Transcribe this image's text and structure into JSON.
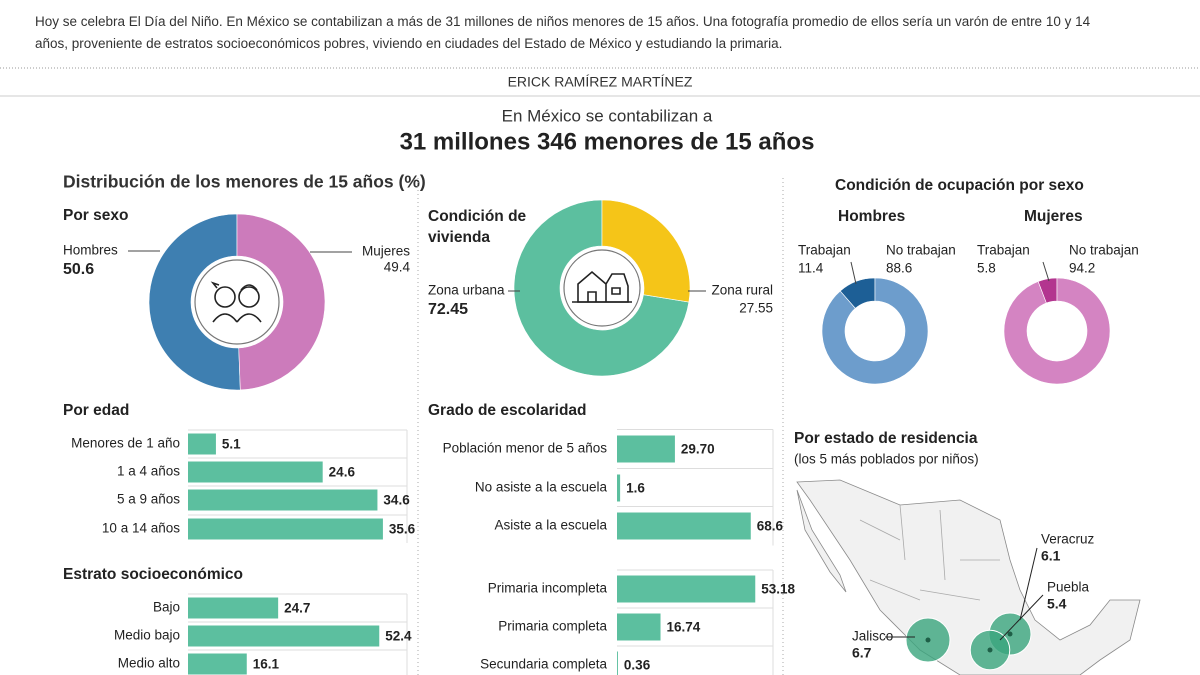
{
  "intro": "Hoy se celebra El Día del Niño. En México se contabilizan a más de 31 millones de niños menores de 15 años. Una fotografía promedio de ellos sería un varón de entre 10 y 14 años, proveniente de estratos socioeconómicos pobres, viviendo en ciudades del Estado de México y estudiando la primaria.",
  "author": "ERICK RAMÍREZ MARTÍNEZ",
  "headline_pre": "En México se contabilizan a",
  "headline": "31 millones 346 menores de 15 años",
  "section_title": "Distribución de los menores de 15 años (%)",
  "chart_data": [
    {
      "type": "pie",
      "title": "Por sexo",
      "categories": [
        "Hombres",
        "Mujeres"
      ],
      "values": [
        50.6,
        49.4
      ],
      "colors": [
        "#3e7fb1",
        "#cc7bbb"
      ]
    },
    {
      "type": "pie",
      "title": "Condición de vivienda",
      "categories": [
        "Zona urbana",
        "Zona rural"
      ],
      "values": [
        72.45,
        27.55
      ],
      "colors": [
        "#5cbf9f",
        "#f5c518"
      ]
    },
    {
      "type": "bar",
      "title": "Por edad",
      "categories": [
        "Menores de 1 año",
        "1 a 4 años",
        "5 a 9 años",
        "10 a 14 años"
      ],
      "values": [
        5.1,
        24.6,
        34.6,
        35.6
      ],
      "color": "#5cbf9f",
      "xlim": [
        0,
        40
      ]
    },
    {
      "type": "bar",
      "title": "Estrato socioeconómico",
      "categories": [
        "Bajo",
        "Medio bajo",
        "Medio alto"
      ],
      "values": [
        24.7,
        52.4,
        16.1
      ],
      "color": "#5cbf9f",
      "xlim": [
        0,
        60
      ]
    },
    {
      "type": "bar",
      "title": "Grado de escolaridad",
      "categories": [
        "Población menor de 5 años",
        "No asiste a la escuela",
        "Asiste a la escuela"
      ],
      "values": [
        29.7,
        1.6,
        68.6
      ],
      "value_labels": [
        "29.70",
        "1.6",
        "68.6"
      ],
      "color": "#5cbf9f",
      "xlim": [
        0,
        80
      ]
    },
    {
      "type": "bar",
      "categories": [
        "Primaria incompleta",
        "Primaria completa",
        "Secundaria completa"
      ],
      "values": [
        53.18,
        16.74,
        0.36
      ],
      "color": "#5cbf9f",
      "xlim": [
        0,
        60
      ]
    },
    {
      "type": "pie",
      "title": "Condición de ocupación por sexo",
      "panels": [
        {
          "name": "Hombres",
          "categories": [
            "Trabajan",
            "No trabajan"
          ],
          "values": [
            11.4,
            88.6
          ],
          "colors": [
            "#1d5f96",
            "#6d9dcc"
          ]
        },
        {
          "name": "Mujeres",
          "categories": [
            "Trabajan",
            "No trabajan"
          ],
          "values": [
            5.8,
            94.2
          ],
          "colors": [
            "#b3358f",
            "#d484c2"
          ]
        }
      ]
    },
    {
      "type": "map",
      "title": "Por estado de residencia",
      "subtitle": "(los 5 más poblados por niños)",
      "categories": [
        "Jalisco",
        "Veracruz",
        "Puebla"
      ],
      "values": [
        6.7,
        6.1,
        5.4
      ],
      "color": "#3aa57d"
    }
  ]
}
